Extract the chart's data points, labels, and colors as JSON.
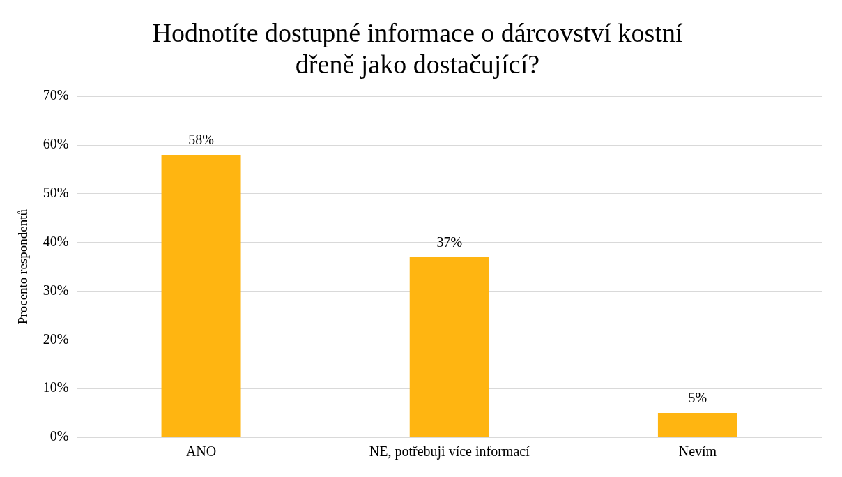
{
  "chart_data": {
    "type": "bar",
    "title": "Hodnotíte dostupné informace o dárcovství kostní\ndřeně jako dostačující?",
    "ylabel": "Procento respondentů",
    "categories": [
      "ANO",
      "NE, potřebuji více informací",
      "Nevím"
    ],
    "values": [
      58,
      37,
      5
    ],
    "color": "#ffb511",
    "value_labels": [
      "58%",
      "37%",
      "5%"
    ],
    "ylim": [
      0,
      70
    ],
    "yticks": [
      {
        "value": 0,
        "label": "0%"
      },
      {
        "value": 10,
        "label": "10%"
      },
      {
        "value": 20,
        "label": "20%"
      },
      {
        "value": 30,
        "label": "30%"
      },
      {
        "value": 40,
        "label": "40%"
      },
      {
        "value": 50,
        "label": "50%"
      },
      {
        "value": 60,
        "label": "60%"
      },
      {
        "value": 70,
        "label": "70%"
      }
    ],
    "grid": "y",
    "legend": false
  }
}
